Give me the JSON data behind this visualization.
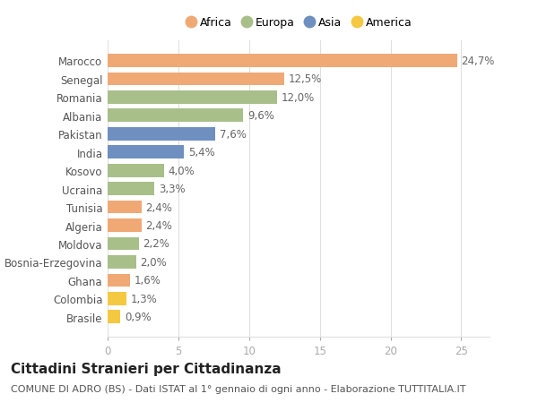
{
  "countries": [
    "Marocco",
    "Senegal",
    "Romania",
    "Albania",
    "Pakistan",
    "India",
    "Kosovo",
    "Ucraina",
    "Tunisia",
    "Algeria",
    "Moldova",
    "Bosnia-Erzegovina",
    "Ghana",
    "Colombia",
    "Brasile"
  ],
  "values": [
    24.7,
    12.5,
    12.0,
    9.6,
    7.6,
    5.4,
    4.0,
    3.3,
    2.4,
    2.4,
    2.2,
    2.0,
    1.6,
    1.3,
    0.9
  ],
  "labels": [
    "24,7%",
    "12,5%",
    "12,0%",
    "9,6%",
    "7,6%",
    "5,4%",
    "4,0%",
    "3,3%",
    "2,4%",
    "2,4%",
    "2,2%",
    "2,0%",
    "1,6%",
    "1,3%",
    "0,9%"
  ],
  "continents": [
    "Africa",
    "Africa",
    "Europa",
    "Europa",
    "Asia",
    "Asia",
    "Europa",
    "Europa",
    "Africa",
    "Africa",
    "Europa",
    "Europa",
    "Africa",
    "America",
    "America"
  ],
  "continent_colors": {
    "Africa": "#F0A875",
    "Europa": "#A8BF8A",
    "Asia": "#6E8FC0",
    "America": "#F5C842"
  },
  "legend_order": [
    "Africa",
    "Europa",
    "Asia",
    "America"
  ],
  "title": "Cittadini Stranieri per Cittadinanza",
  "subtitle": "COMUNE DI ADRO (BS) - Dati ISTAT al 1° gennaio di ogni anno - Elaborazione TUTTITALIA.IT",
  "xlim": [
    0,
    27
  ],
  "xticks": [
    0,
    5,
    10,
    15,
    20,
    25
  ],
  "background_color": "#ffffff",
  "grid_color": "#e0e0e0",
  "bar_height": 0.72,
  "label_fontsize": 8.5,
  "tick_fontsize": 8.5,
  "title_fontsize": 11,
  "subtitle_fontsize": 8.0
}
